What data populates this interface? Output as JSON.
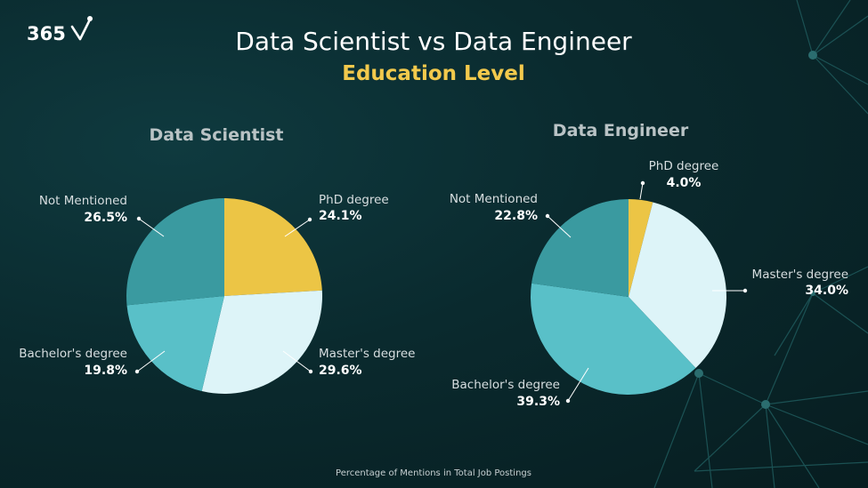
{
  "logo": {
    "text": "365"
  },
  "title": "Data Scientist vs Data Engineer",
  "subtitle": "Education Level",
  "footnote": "Percentage of Mentions in Total Job Postings",
  "colors": {
    "phd": "#ecc545",
    "masters": "#ddf4f8",
    "bachelors": "#59c0c8",
    "not_mentioned": "#3a9aa0",
    "subtitle": "#f2c94c"
  },
  "chart_data": [
    {
      "type": "pie",
      "title": "Data Scientist",
      "slices": [
        {
          "label": "PhD degree",
          "value": 24.1,
          "display": "24.1%",
          "color_key": "phd"
        },
        {
          "label": "Master's degree",
          "value": 29.6,
          "display": "29.6%",
          "color_key": "masters"
        },
        {
          "label": "Bachelor's degree",
          "value": 19.8,
          "display": "19.8%",
          "color_key": "bachelors"
        },
        {
          "label": "Not Mentioned",
          "value": 26.5,
          "display": "26.5%",
          "color_key": "not_mentioned"
        }
      ]
    },
    {
      "type": "pie",
      "title": "Data Engineer",
      "slices": [
        {
          "label": "PhD degree",
          "value": 4.0,
          "display": "4.0%",
          "color_key": "phd"
        },
        {
          "label": "Master's degree",
          "value": 34.0,
          "display": "34.0%",
          "color_key": "masters"
        },
        {
          "label": "Bachelor's degree",
          "value": 39.3,
          "display": "39.3%",
          "color_key": "bachelors"
        },
        {
          "label": "Not Mentioned",
          "value": 22.8,
          "display": "22.8%",
          "color_key": "not_mentioned"
        }
      ]
    }
  ]
}
